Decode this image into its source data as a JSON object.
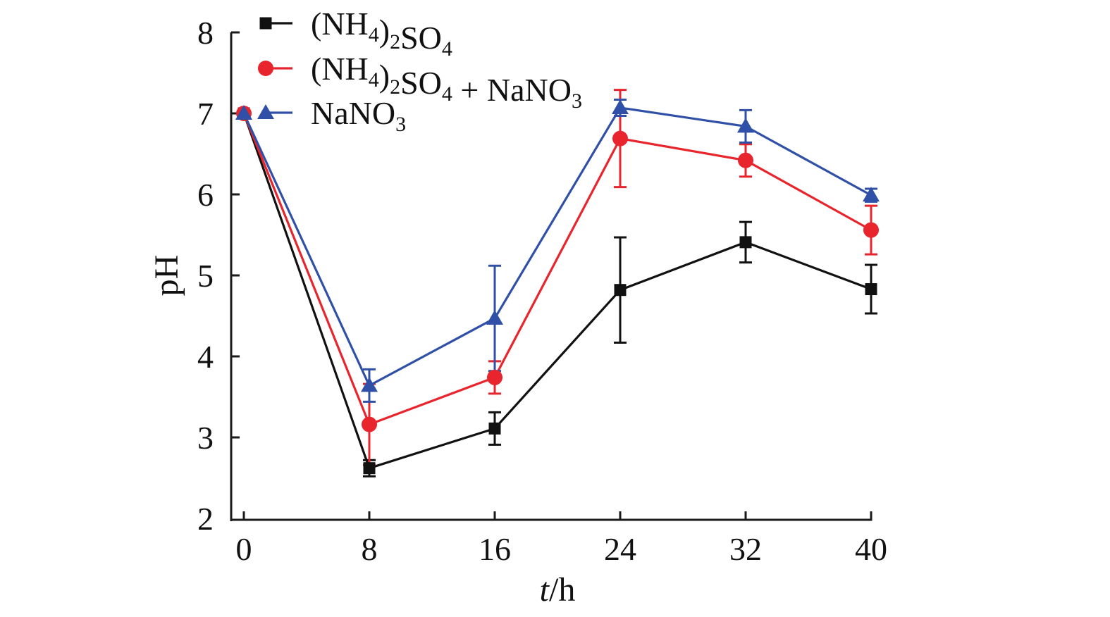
{
  "chart_data": {
    "type": "line",
    "title": "",
    "xlabel_italic": "t",
    "xlabel_rest": "/h",
    "xlabel": "t/h",
    "ylabel": "pH",
    "xlim": [
      0,
      40
    ],
    "ylim": [
      2,
      8
    ],
    "xticks": [
      0,
      8,
      16,
      24,
      32,
      40
    ],
    "yticks": [
      2,
      3,
      4,
      5,
      6,
      7,
      8
    ],
    "grid": false,
    "legend_position": "top-left",
    "x": [
      0,
      8,
      16,
      24,
      32,
      40
    ],
    "series": [
      {
        "name": "(NH4)2SO4",
        "legend_parts": [
          [
            "(NH",
            ""
          ],
          [
            "4",
            "sub"
          ],
          [
            ")",
            ""
          ],
          [
            "2",
            "sub"
          ],
          [
            "SO",
            ""
          ],
          [
            "4",
            "sub"
          ]
        ],
        "color": "#111111",
        "marker": "square",
        "values": [
          7.0,
          2.62,
          3.11,
          4.82,
          5.41,
          4.83
        ],
        "errors": [
          0.0,
          0.1,
          0.2,
          0.65,
          0.25,
          0.3
        ]
      },
      {
        "name": "(NH4)2SO4 + NaNO3",
        "legend_parts": [
          [
            "(NH",
            ""
          ],
          [
            "4",
            "sub"
          ],
          [
            ")",
            ""
          ],
          [
            "2",
            "sub"
          ],
          [
            "SO",
            ""
          ],
          [
            "4",
            "sub"
          ],
          [
            " + NaNO",
            ""
          ],
          [
            "3",
            "sub"
          ]
        ],
        "color": "#e8242c",
        "marker": "circle",
        "values": [
          7.0,
          3.16,
          3.74,
          6.69,
          6.42,
          5.56
        ],
        "errors": [
          0.0,
          0.5,
          0.2,
          0.6,
          0.2,
          0.3
        ]
      },
      {
        "name": "NaNO3",
        "legend_parts": [
          [
            "NaNO",
            ""
          ],
          [
            "3",
            "sub"
          ]
        ],
        "color": "#3050a8",
        "marker": "triangle",
        "values": [
          7.0,
          3.64,
          4.47,
          7.07,
          6.84,
          5.99
        ],
        "errors": [
          0.0,
          0.2,
          0.65,
          0.1,
          0.2,
          0.08
        ]
      }
    ]
  }
}
